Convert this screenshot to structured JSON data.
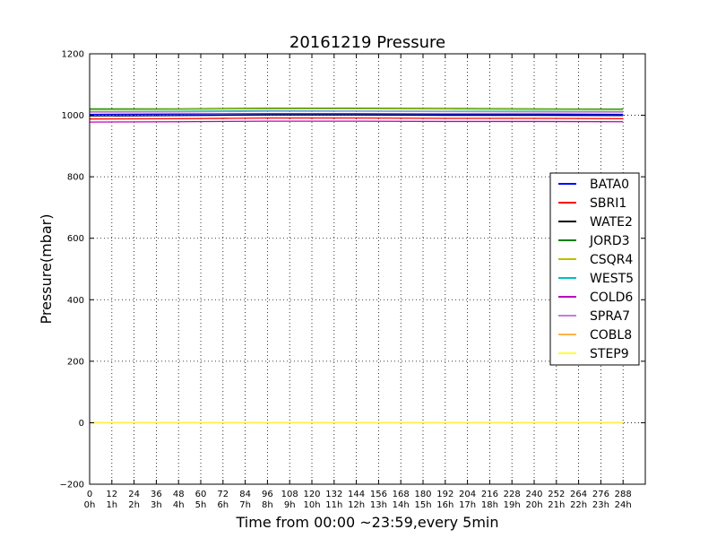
{
  "chart_data": {
    "type": "line",
    "title": "20161219 Pressure",
    "xlabel": "Time from 00:00 ~23:59,every 5min",
    "ylabel": "Pressure(mbar)",
    "xlim": [
      0,
      300
    ],
    "ylim": [
      -200,
      1200
    ],
    "grid": true,
    "grid_style": "dotted",
    "legend_position": "center-right",
    "x_ticks": [
      0,
      12,
      24,
      36,
      48,
      60,
      72,
      84,
      96,
      108,
      120,
      132,
      144,
      156,
      168,
      180,
      192,
      204,
      216,
      228,
      240,
      252,
      264,
      276,
      288
    ],
    "x_tick_labels": [
      "0",
      "12",
      "24",
      "36",
      "48",
      "60",
      "72",
      "84",
      "96",
      "108",
      "120",
      "132",
      "144",
      "156",
      "168",
      "180",
      "192",
      "204",
      "216",
      "228",
      "240",
      "252",
      "264",
      "276",
      "288"
    ],
    "x_tick_sublabels": [
      "0h",
      "1h",
      "2h",
      "3h",
      "4h",
      "5h",
      "6h",
      "7h",
      "8h",
      "9h",
      "10h",
      "11h",
      "12h",
      "13h",
      "14h",
      "15h",
      "16h",
      "17h",
      "18h",
      "19h",
      "20h",
      "21h",
      "22h",
      "23h",
      "24h"
    ],
    "y_ticks": [
      -200,
      0,
      200,
      400,
      600,
      800,
      1000,
      1200
    ],
    "y_tick_labels": [
      "−200",
      "0",
      "200",
      "400",
      "600",
      "800",
      "1000",
      "1200"
    ],
    "series": [
      {
        "name": "BATA0",
        "color": "#0000ff",
        "x": [
          0,
          48,
          96,
          144,
          192,
          240,
          288
        ],
        "values": [
          1003,
          1004,
          1005,
          1005,
          1004,
          1004,
          1003
        ]
      },
      {
        "name": "SBRI1",
        "color": "#ff0000",
        "x": [
          0,
          48,
          96,
          144,
          192,
          240,
          288
        ],
        "values": [
          988,
          989,
          991,
          991,
          990,
          990,
          989
        ]
      },
      {
        "name": "WATE2",
        "color": "#000000",
        "x": [
          0,
          48,
          96,
          144,
          192,
          240,
          288
        ],
        "values": [
          998,
          999,
          1001,
          1001,
          1000,
          1000,
          999
        ]
      },
      {
        "name": "JORD3",
        "color": "#008000",
        "x": [
          0,
          48,
          96,
          144,
          192,
          240,
          288
        ],
        "values": [
          1021,
          1021,
          1023,
          1023,
          1022,
          1021,
          1020
        ]
      },
      {
        "name": "CSQR4",
        "color": "#bfbf00",
        "x": [
          0,
          48,
          96,
          144,
          192,
          240,
          288
        ],
        "values": [
          1018,
          1019,
          1021,
          1021,
          1020,
          1019,
          1018
        ]
      },
      {
        "name": "WEST5",
        "color": "#00bfbf",
        "x": [
          0,
          48,
          96,
          144,
          192,
          240,
          288
        ],
        "values": [
          1012,
          1013,
          1015,
          1014,
          1013,
          1013,
          1012
        ]
      },
      {
        "name": "COLD6",
        "color": "#bf00bf",
        "x": [
          0,
          48,
          96,
          144,
          192,
          240,
          288
        ],
        "values": [
          978,
          979,
          981,
          981,
          980,
          980,
          979
        ]
      },
      {
        "name": "SPRA7",
        "color": "#c77cd9",
        "x": [
          0,
          48,
          96,
          144,
          192,
          240,
          288
        ],
        "values": [
          1010,
          1011,
          1013,
          1013,
          1012,
          1011,
          1010
        ]
      },
      {
        "name": "COBL8",
        "color": "#ffb347",
        "x": [
          0,
          48,
          96,
          144,
          192,
          240,
          288
        ],
        "values": [
          0,
          0,
          0,
          0,
          0,
          0,
          0
        ]
      },
      {
        "name": "STEP9",
        "color": "#ffff33",
        "x": [
          0,
          48,
          96,
          144,
          192,
          240,
          288
        ],
        "values": [
          -1,
          -1,
          -1,
          -1,
          -1,
          -1,
          -1
        ]
      }
    ]
  }
}
